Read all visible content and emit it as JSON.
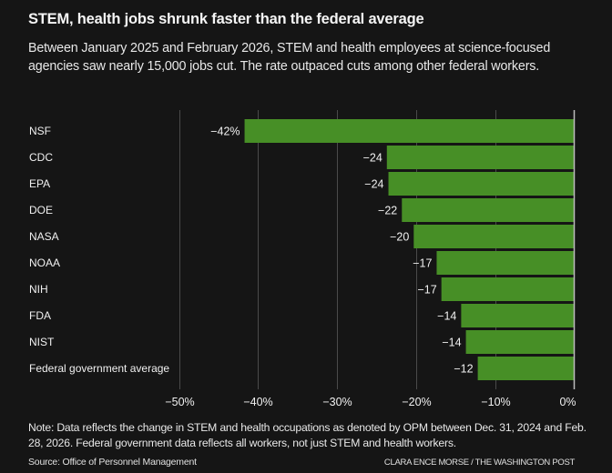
{
  "header": {
    "title": "STEM, health jobs shrunk faster than the federal average",
    "subtitle": "Between January 2025 and February 2026, STEM and health employees at science-focused agencies saw nearly 15,000 jobs cut. The rate outpaced cuts among other federal workers."
  },
  "chart_data": {
    "type": "bar",
    "orientation": "horizontal",
    "title": "STEM, health jobs shrunk faster than the federal average",
    "xlabel": "",
    "ylabel": "",
    "categories": [
      "NSF",
      "CDC",
      "EPA",
      "DOE",
      "NASA",
      "NOAA",
      "NIH",
      "FDA",
      "NIST",
      "Federal government average"
    ],
    "values": [
      -41.7,
      -23.7,
      -23.5,
      -21.8,
      -20.3,
      -17.4,
      -16.8,
      -14.3,
      -13.7,
      -12.2
    ],
    "value_labels": [
      "−42%",
      "−24",
      "−24",
      "−22",
      "−20",
      "−17",
      "−17",
      "−14",
      "−14",
      "−12"
    ],
    "xlim": [
      -50,
      0
    ],
    "xticks": [
      -50,
      -40,
      -30,
      -20,
      -10,
      0
    ],
    "xtick_labels": [
      "−50%",
      "−40%",
      "−30%",
      "−20%",
      "−10%",
      "0%"
    ],
    "grid": true,
    "bar_color": "#478f26"
  },
  "footer": {
    "note": "Note: Data reflects the change in STEM and health occupations as denoted by OPM between Dec. 31, 2024 and Feb. 28, 2026. Federal government data reflects all workers, not just STEM and health workers.",
    "source": "Source: Office of Personnel Management",
    "credit": "CLARA ENCE MORSE / THE WASHINGTON POST"
  }
}
